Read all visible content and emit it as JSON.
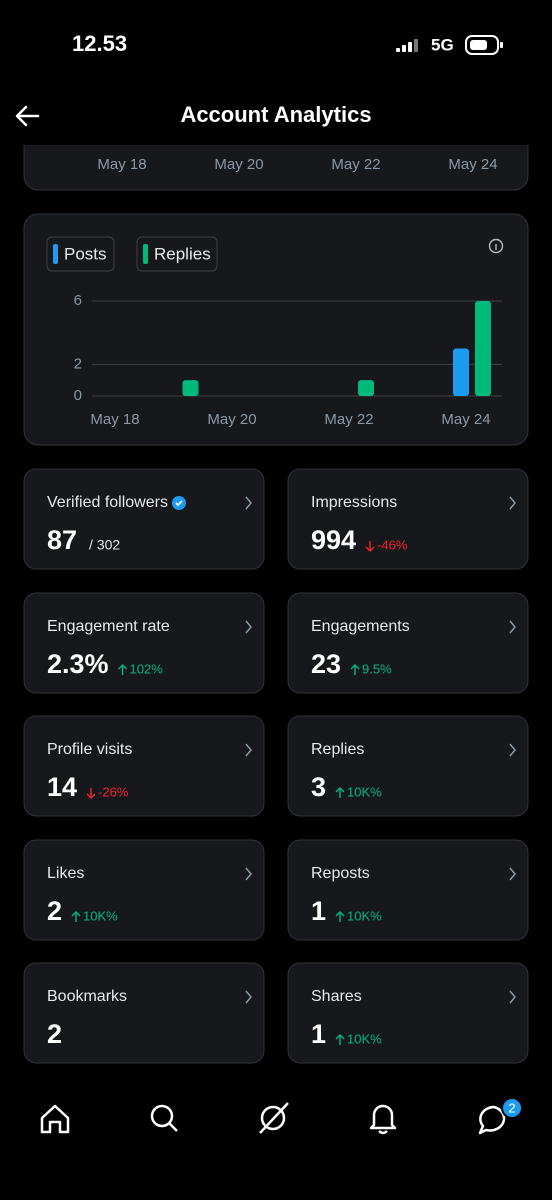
{
  "status_bar": {
    "time": "12.53",
    "network": "5G"
  },
  "header": {
    "title": "Account Analytics"
  },
  "previous_chart": {
    "x_labels": [
      "May 18",
      "May 20",
      "May 22",
      "May 24"
    ]
  },
  "chart": {
    "type": "bar",
    "categories": [
      "May 18",
      null,
      "May 20",
      null,
      "May 22",
      null,
      "May 24"
    ],
    "series": [
      {
        "name": "Posts",
        "color": "#1d9bf0",
        "values": [
          0,
          0,
          0,
          0,
          0,
          0,
          3
        ]
      },
      {
        "name": "Replies",
        "color": "#00ba7c",
        "values": [
          0,
          1,
          0,
          0,
          1,
          0,
          6
        ]
      }
    ],
    "ylim": [
      0,
      6
    ],
    "yticks": [
      0,
      2,
      6
    ],
    "grid": true
  },
  "metrics": [
    {
      "label": "Verified followers",
      "value": 87,
      "total": "/ 302",
      "verified": true
    },
    {
      "label": "Impressions",
      "value": 994,
      "change": "-46%",
      "direction": "down"
    },
    {
      "label": "Engagement rate",
      "value": "2.3%",
      "change": "102%",
      "direction": "up"
    },
    {
      "label": "Engagements",
      "value": 23,
      "change": "9.5%",
      "direction": "up"
    },
    {
      "label": "Profile visits",
      "value": 14,
      "change": "-26%",
      "direction": "down"
    },
    {
      "label": "Replies",
      "value": 3,
      "change": "10K%",
      "direction": "up"
    },
    {
      "label": "Likes",
      "value": 2,
      "change": "10K%",
      "direction": "up"
    },
    {
      "label": "Reposts",
      "value": 1,
      "change": "10K%",
      "direction": "up"
    },
    {
      "label": "Bookmarks",
      "value": 2
    },
    {
      "label": "Shares",
      "value": 1,
      "change": "10K%",
      "direction": "up"
    }
  ],
  "nav": {
    "badge": 2
  }
}
